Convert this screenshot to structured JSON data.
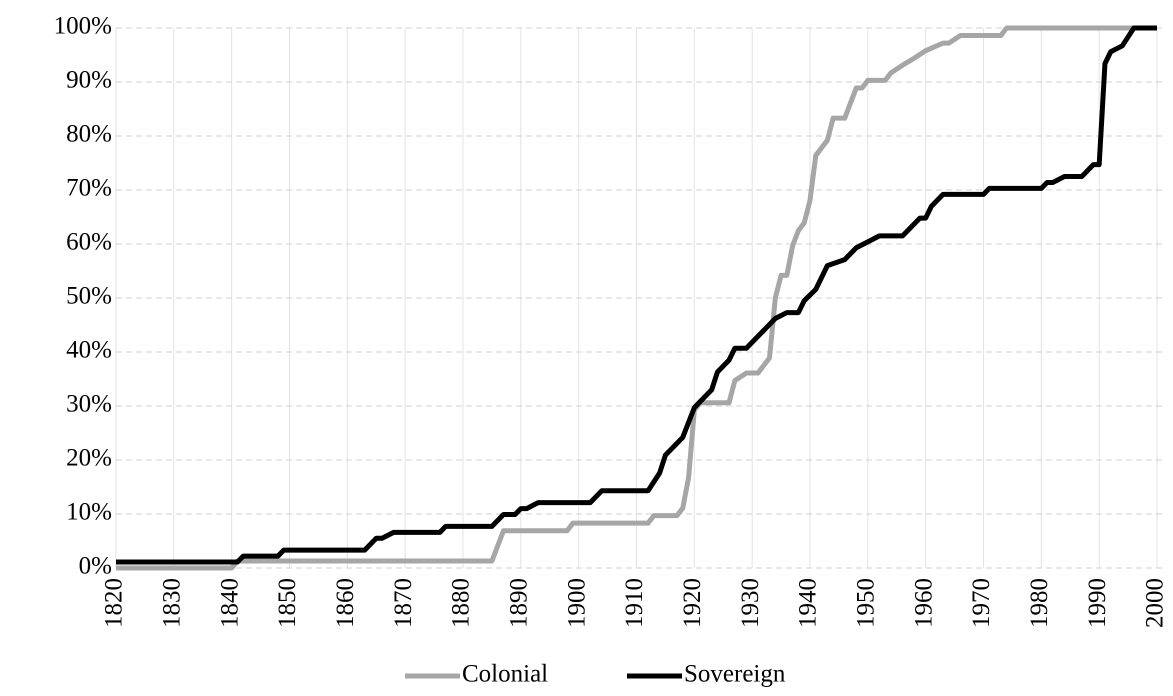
{
  "chart_data": {
    "type": "line",
    "xlim": [
      1820,
      2000
    ],
    "xticks": [
      1820,
      1830,
      1840,
      1850,
      1860,
      1870,
      1880,
      1890,
      1900,
      1910,
      1920,
      1930,
      1940,
      1950,
      1960,
      1970,
      1980,
      1990,
      2000
    ],
    "ylim": [
      0,
      100
    ],
    "yticks": [
      {
        "value": 0,
        "label": "0%"
      },
      {
        "value": 10,
        "label": "10%"
      },
      {
        "value": 20,
        "label": "20%"
      },
      {
        "value": 30,
        "label": "30%"
      },
      {
        "value": 40,
        "label": "40%"
      },
      {
        "value": 50,
        "label": "50%"
      },
      {
        "value": 60,
        "label": "60%"
      },
      {
        "value": 70,
        "label": "70%"
      },
      {
        "value": 80,
        "label": "80%"
      },
      {
        "value": 90,
        "label": "90%"
      },
      {
        "value": 100,
        "label": "100%"
      }
    ],
    "grid": true,
    "legend": "bottom",
    "series": [
      {
        "name": "Colonial",
        "color": "#a6a6a6",
        "x": [
          1820,
          1840,
          1841,
          1885,
          1887,
          1898,
          1899,
          1912,
          1913,
          1917,
          1918,
          1919,
          1920,
          1921,
          1926,
          1927,
          1929,
          1931,
          1932,
          1933,
          1934,
          1935,
          1936,
          1937,
          1938,
          1939,
          1940,
          1941,
          1943,
          1944,
          1946,
          1948,
          1949,
          1950,
          1953,
          1954,
          1956,
          1958,
          1960,
          1963,
          1964,
          1966,
          1973,
          1974,
          2000
        ],
        "values": [
          0,
          0,
          1.3,
          1.3,
          6.9,
          6.9,
          8.3,
          8.3,
          9.7,
          9.7,
          11.1,
          16.7,
          29.2,
          30.6,
          30.6,
          34.7,
          36.1,
          36.1,
          37.5,
          38.9,
          50,
          54.2,
          54.2,
          59.7,
          62.5,
          63.9,
          68.1,
          76.4,
          79.2,
          83.3,
          83.3,
          88.9,
          88.9,
          90.3,
          90.3,
          91.7,
          93.1,
          94.4,
          95.8,
          97.2,
          97.2,
          98.6,
          98.6,
          100,
          100
        ]
      },
      {
        "name": "Sovereign",
        "color": "#000000",
        "x": [
          1820,
          1841,
          1842,
          1848,
          1849,
          1863,
          1865,
          1866,
          1868,
          1876,
          1877,
          1885,
          1887,
          1889,
          1890,
          1891,
          1893,
          1902,
          1904,
          1912,
          1914,
          1915,
          1918,
          1920,
          1923,
          1924,
          1926,
          1927,
          1929,
          1930,
          1932,
          1934,
          1936,
          1938,
          1939,
          1941,
          1943,
          1946,
          1948,
          1950,
          1952,
          1956,
          1957,
          1959,
          1960,
          1961,
          1963,
          1970,
          1971,
          1980,
          1981,
          1982,
          1984,
          1987,
          1989,
          1990,
          1991,
          1992,
          1994,
          1996,
          2000
        ],
        "values": [
          1.1,
          1.1,
          2.2,
          2.2,
          3.3,
          3.3,
          5.5,
          5.5,
          6.6,
          6.6,
          7.7,
          7.7,
          9.9,
          9.9,
          11,
          11,
          12.1,
          12.1,
          14.3,
          14.3,
          17.6,
          20.9,
          24.2,
          29.7,
          33,
          36.3,
          38.5,
          40.7,
          40.7,
          41.8,
          44,
          46.2,
          47.3,
          47.3,
          49.5,
          51.6,
          56,
          57.1,
          59.3,
          60.4,
          61.5,
          61.5,
          62.6,
          64.8,
          64.8,
          67,
          69.2,
          69.2,
          70.3,
          70.3,
          71.4,
          71.4,
          72.5,
          72.5,
          74.7,
          74.7,
          93.4,
          95.6,
          96.7,
          100,
          100
        ]
      }
    ]
  }
}
